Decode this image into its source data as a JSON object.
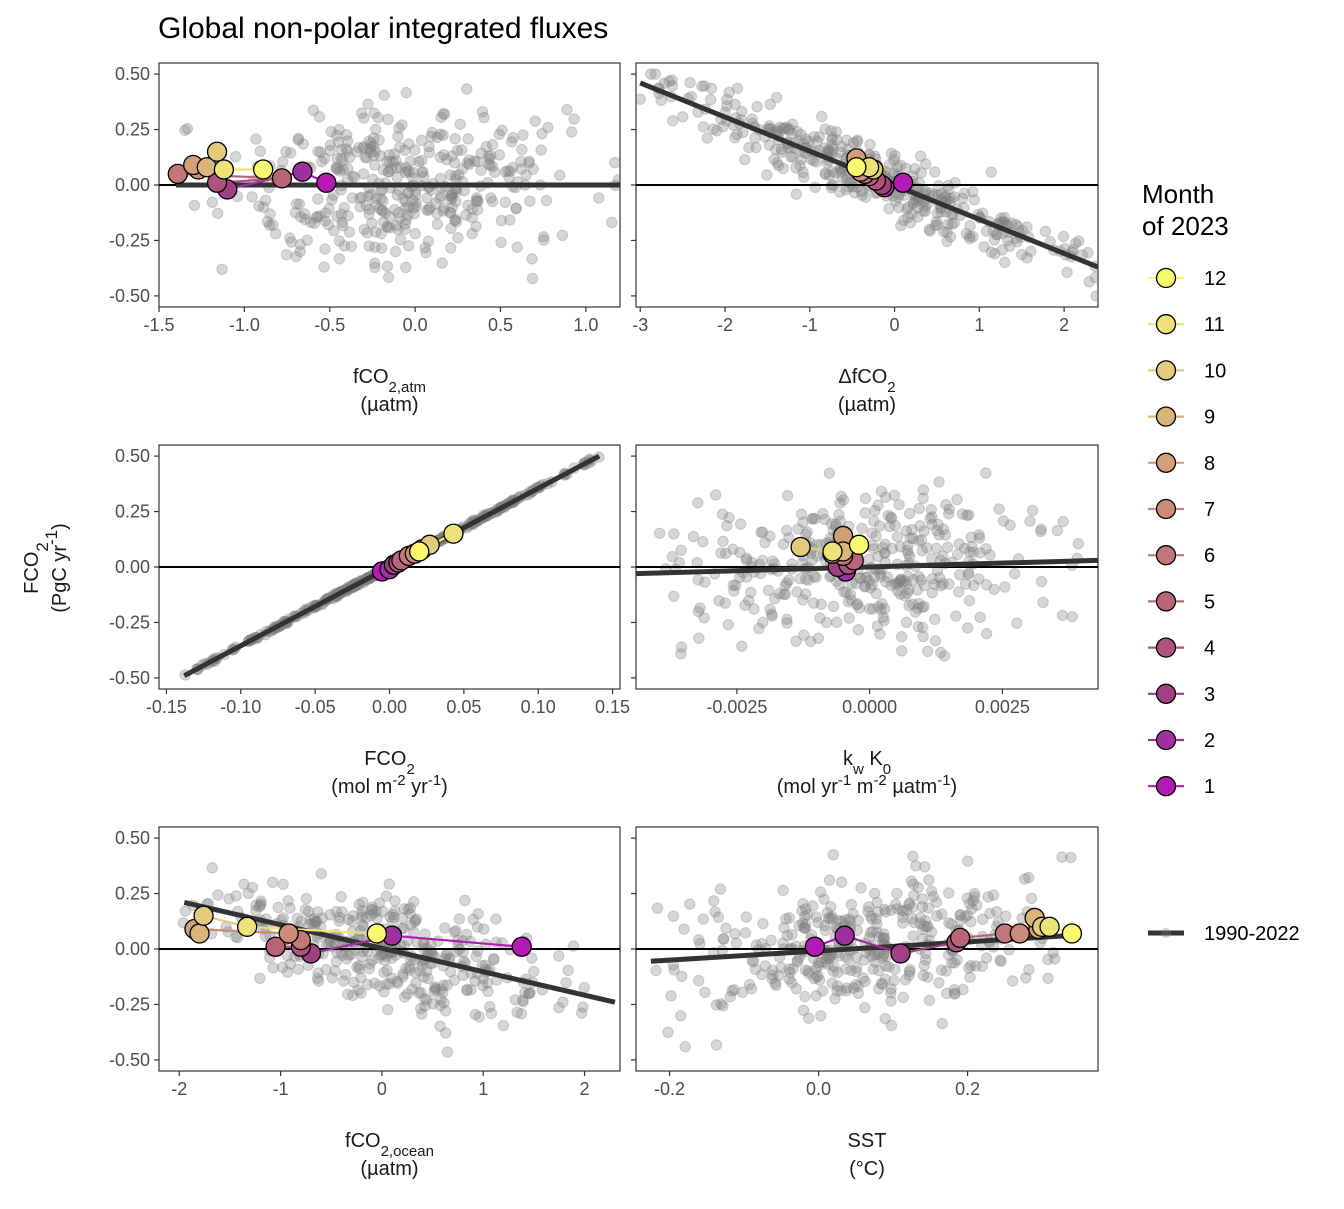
{
  "title": "Global non-polar integrated fluxes",
  "y_axis": {
    "label": "FCO",
    "sub": "2",
    "unit_pre": "(PgC yr",
    "unit_sup": "-1",
    "unit_post": ")"
  },
  "legend": {
    "title_line1": "Month",
    "title_line2": "of 2023",
    "months": [
      "12",
      "11",
      "10",
      "9",
      "8",
      "7",
      "6",
      "5",
      "4",
      "3",
      "2",
      "1"
    ],
    "month_colors": [
      "#FAFA6E",
      "#EDE277",
      "#E2CB7A",
      "#D9B47B",
      "#D29F7A",
      "#CB8B79",
      "#C27878",
      "#B86579",
      "#AD537D",
      "#A04183",
      "#A02FA0",
      "#B41AB4"
    ],
    "line_label": "1990-2022",
    "line_color": "#333333"
  },
  "colors": {
    "scatter": "#808080",
    "trend": "#333333",
    "zero_line": "#000000"
  },
  "chart_data": [
    {
      "type": "scatter",
      "panel": "fco2atm",
      "xlabel_parts": [
        [
          "fCO",
          ""
        ],
        [
          "2,atm",
          "sub"
        ]
      ],
      "xunit": "(µatm)",
      "xlim": [
        -1.5,
        1.2
      ],
      "ylim": [
        -0.5,
        0.5
      ],
      "xticks": [
        -1.5,
        -1.0,
        -0.5,
        0.0,
        0.5,
        1.0
      ],
      "xtick_labels": [
        "-1.5",
        "-1.0",
        "-0.5",
        "0.0",
        "0.5",
        "1.0"
      ],
      "yticks": [
        -0.5,
        -0.25,
        0,
        0.25,
        0.5
      ],
      "ytick_labels": [
        "-0.50",
        "-0.25",
        "0.00",
        "0.25",
        "0.50"
      ],
      "trend": {
        "x": [
          -1.4,
          1.2
        ],
        "y": [
          0.0,
          0.0
        ]
      },
      "background_cloud": {
        "xmin": -1.35,
        "xmax": 1.2,
        "slope": 0.0,
        "intercept": 0.0,
        "noise": 0.17,
        "label": "1990-2022"
      },
      "months_2023": {
        "x": [
          -0.52,
          -0.66,
          -1.1,
          -1.16,
          -0.78,
          -1.39,
          -1.27,
          -1.3,
          -1.22,
          -1.16,
          -1.12,
          -0.89
        ],
        "y": [
          0.01,
          0.06,
          -0.02,
          0.01,
          0.03,
          0.05,
          0.07,
          0.09,
          0.08,
          0.15,
          0.07,
          0.07
        ]
      }
    },
    {
      "type": "scatter",
      "panel": "dfco2",
      "xlabel_parts": [
        [
          "ΔfCO",
          ""
        ],
        [
          "2",
          "sub"
        ]
      ],
      "xunit": "(µatm)",
      "xlim": [
        -3.05,
        2.4
      ],
      "ylim": [
        -0.5,
        0.5
      ],
      "xticks": [
        -3,
        -2,
        -1,
        0,
        1,
        2
      ],
      "xtick_labels": [
        "-3",
        "-2",
        "-1",
        "0",
        "1",
        "2"
      ],
      "yticks": [
        -0.5,
        -0.25,
        0,
        0.25,
        0.5
      ],
      "ytick_labels": [
        "-0.50",
        "-0.25",
        "0.00",
        "0.25",
        "0.50"
      ],
      "trend": {
        "x": [
          -3.0,
          2.4
        ],
        "y": [
          0.46,
          -0.37
        ]
      },
      "background_cloud": {
        "xmin": -3.0,
        "xmax": 2.4,
        "slope": -0.154,
        "intercept": 0.0,
        "noise": 0.075
      },
      "months_2023": {
        "x": [
          0.1,
          -0.12,
          -0.15,
          -0.22,
          -0.3,
          -0.35,
          -0.4,
          -0.45,
          -0.25,
          -0.25,
          -0.3,
          -0.45
        ],
        "y": [
          0.01,
          -0.01,
          0.0,
          0.02,
          0.04,
          0.05,
          0.06,
          0.12,
          0.07,
          0.07,
          0.08,
          0.08
        ]
      }
    },
    {
      "type": "scatter",
      "panel": "fco2flux",
      "xlabel_parts": [
        [
          "FCO",
          ""
        ],
        [
          "2",
          "sub"
        ]
      ],
      "xunit_parts": [
        [
          "(mol m",
          ""
        ],
        [
          "-2",
          "sup"
        ],
        [
          " yr",
          ""
        ],
        [
          "-1",
          "sup"
        ],
        [
          ")",
          ""
        ]
      ],
      "xlim": [
        -0.155,
        0.155
      ],
      "ylim": [
        -0.5,
        0.5
      ],
      "xticks": [
        -0.15,
        -0.1,
        -0.05,
        0.0,
        0.05,
        0.1,
        0.15
      ],
      "xtick_labels": [
        "-0.15",
        "-0.10",
        "-0.05",
        "0.00",
        "0.05",
        "0.10",
        "0.15"
      ],
      "yticks": [
        -0.5,
        -0.25,
        0,
        0.25,
        0.5
      ],
      "ytick_labels": [
        "-0.50",
        "-0.25",
        "0.00",
        "0.25",
        "0.50"
      ],
      "trend": {
        "x": [
          -0.138,
          0.141
        ],
        "y": [
          -0.49,
          0.5
        ]
      },
      "background_cloud": {
        "xmin": -0.138,
        "xmax": 0.141,
        "slope": 3.55,
        "intercept": 0.0,
        "noise": 0.004
      },
      "months_2023": {
        "x": [
          -0.005,
          0.0,
          0.003,
          0.006,
          0.008,
          0.013,
          0.017,
          0.02,
          0.022,
          0.027,
          0.043,
          0.02
        ],
        "y": [
          -0.02,
          -0.01,
          0.01,
          0.02,
          0.03,
          0.05,
          0.06,
          0.07,
          0.08,
          0.1,
          0.15,
          0.07
        ]
      }
    },
    {
      "type": "scatter",
      "panel": "kwk0",
      "xlabel_parts": [
        [
          "k",
          ""
        ],
        [
          "w",
          "sub"
        ],
        [
          " K",
          ""
        ],
        [
          "0",
          "sub"
        ]
      ],
      "xunit_parts": [
        [
          "(mol yr",
          ""
        ],
        [
          "-1",
          "sup"
        ],
        [
          " m",
          ""
        ],
        [
          "-2",
          "sup"
        ],
        [
          " µatm",
          ""
        ],
        [
          "-1",
          "sup"
        ],
        [
          ")",
          ""
        ]
      ],
      "xlim": [
        -0.0044,
        0.0043
      ],
      "ylim": [
        -0.5,
        0.5
      ],
      "xticks": [
        -0.0025,
        0.0,
        0.0025
      ],
      "xtick_labels": [
        "-0.0025",
        "0.0000",
        "0.0025"
      ],
      "yticks": [
        -0.5,
        -0.25,
        0,
        0.25,
        0.5
      ],
      "ytick_labels": [
        "-0.50",
        "-0.25",
        "0.00",
        "0.25",
        "0.50"
      ],
      "trend": {
        "x": [
          -0.0044,
          0.0043
        ],
        "y": [
          -0.03,
          0.03
        ]
      },
      "background_cloud": {
        "xmin": -0.0041,
        "xmax": 0.004,
        "slope": 7.0,
        "intercept": 0.0,
        "noise": 0.17
      },
      "months_2023": {
        "x": [
          -0.00045,
          -0.00045,
          -0.0006,
          -0.0004,
          -0.0003,
          -0.0005,
          -0.0007,
          -0.0005,
          -0.0005,
          -0.0013,
          -0.0007,
          -0.0002
        ],
        "y": [
          -0.02,
          -0.02,
          0.0,
          0.01,
          0.03,
          0.05,
          0.06,
          0.14,
          0.07,
          0.09,
          0.07,
          0.1
        ]
      }
    },
    {
      "type": "scatter",
      "panel": "fco2ocean",
      "xlabel_parts": [
        [
          "fCO",
          ""
        ],
        [
          "2,ocean",
          "sub"
        ]
      ],
      "xunit": "(µatm)",
      "xlim": [
        -2.2,
        2.35
      ],
      "ylim": [
        -0.5,
        0.5
      ],
      "xticks": [
        -2,
        -1,
        0,
        1,
        2
      ],
      "xtick_labels": [
        "-2",
        "-1",
        "0",
        "1",
        "2"
      ],
      "yticks": [
        -0.5,
        -0.25,
        0,
        0.25,
        0.5
      ],
      "ytick_labels": [
        "-0.50",
        "-0.25",
        "0.00",
        "0.25",
        "0.50"
      ],
      "trend": {
        "x": [
          -1.95,
          2.3
        ],
        "y": [
          0.21,
          -0.24
        ]
      },
      "background_cloud": {
        "xmin": -2.0,
        "xmax": 2.0,
        "slope": -0.105,
        "intercept": 0.0,
        "noise": 0.13
      },
      "months_2023": {
        "x": [
          1.38,
          0.1,
          -0.7,
          -0.8,
          -1.05,
          -0.8,
          -0.92,
          -1.85,
          -1.8,
          -1.76,
          -1.33,
          -0.05
        ],
        "y": [
          0.01,
          0.06,
          -0.02,
          0.01,
          0.01,
          0.04,
          0.07,
          0.09,
          0.07,
          0.15,
          0.1,
          0.07
        ]
      }
    },
    {
      "type": "scatter",
      "panel": "sst",
      "xlabel_parts": [
        [
          "SST",
          ""
        ]
      ],
      "xunit": "(°C)",
      "xlim": [
        -0.245,
        0.375
      ],
      "ylim": [
        -0.5,
        0.5
      ],
      "xticks": [
        -0.2,
        0.0,
        0.2
      ],
      "xtick_labels": [
        "-0.2",
        "0.0",
        "0.2"
      ],
      "yticks": [
        -0.5,
        -0.25,
        0,
        0.25,
        0.5
      ],
      "ytick_labels": [
        "-0.50",
        "-0.25",
        "0.00",
        "0.25",
        "0.50"
      ],
      "trend": {
        "x": [
          -0.225,
          0.335
        ],
        "y": [
          -0.055,
          0.06
        ]
      },
      "background_cloud": {
        "xmin": -0.22,
        "xmax": 0.34,
        "slope": 0.2,
        "intercept": 0.0,
        "noise": 0.15
      },
      "months_2023": {
        "x": [
          -0.005,
          0.035,
          0.11,
          0.185,
          0.19,
          0.25,
          0.27,
          0.295,
          0.29,
          0.3,
          0.31,
          0.34
        ],
        "y": [
          0.01,
          0.06,
          -0.02,
          0.03,
          0.05,
          0.07,
          0.07,
          0.09,
          0.14,
          0.1,
          0.1,
          0.07
        ]
      }
    }
  ]
}
